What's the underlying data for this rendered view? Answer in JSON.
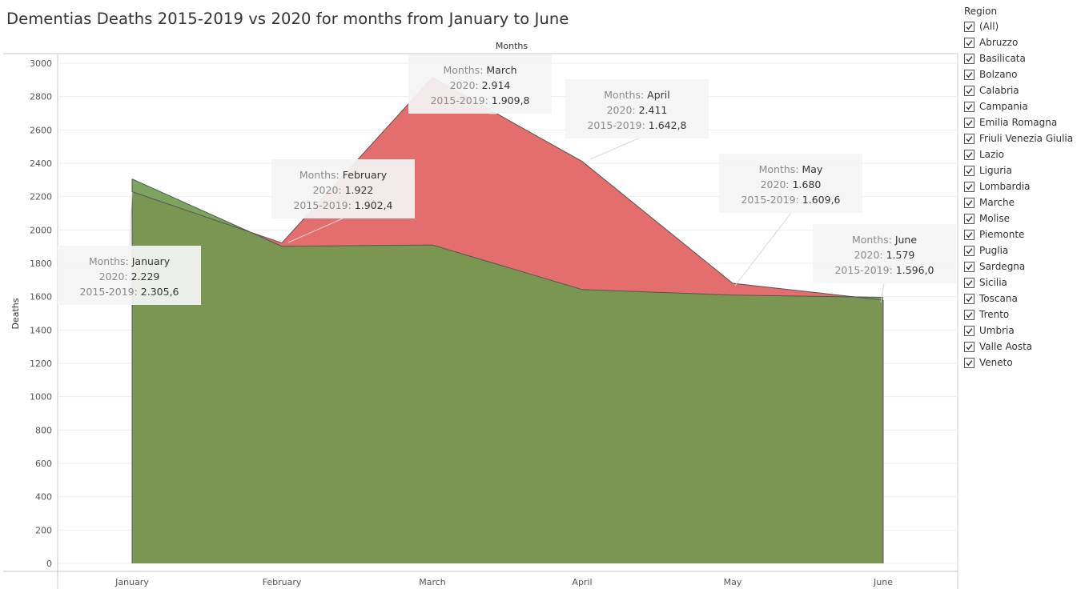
{
  "title": "Dementias Deaths 2015-2019 vs 2020 for months from January to June",
  "chart_data": {
    "type": "area",
    "title": "Dementias Deaths 2015-2019 vs 2020 for months from January to June",
    "column_header": "Months",
    "ylabel": "Deaths",
    "ylim": [
      0,
      3000
    ],
    "yticks": [
      0,
      200,
      400,
      600,
      800,
      1000,
      1200,
      1400,
      1600,
      1800,
      2000,
      2200,
      2400,
      2600,
      2800,
      3000
    ],
    "grid": true,
    "categories": [
      "January",
      "February",
      "March",
      "April",
      "May",
      "June"
    ],
    "series": [
      {
        "name": "2020",
        "values": [
          2229,
          1922,
          2914,
          2411,
          1680,
          1579
        ],
        "color": "#e46e6e"
      },
      {
        "name": "2015-2019",
        "values": [
          2305.6,
          1902.4,
          1909.8,
          1642.8,
          1609.6,
          1596.0
        ],
        "color": "#6e9a4f"
      }
    ],
    "annotations": [
      {
        "month": "January",
        "month_label": "Months: ",
        "v2020_label": "2020: ",
        "v2020": "2.229",
        "vavg_label": "2015-2019: ",
        "vavg": "2.305,6"
      },
      {
        "month": "February",
        "month_label": "Months: ",
        "v2020_label": "2020: ",
        "v2020": "1.922",
        "vavg_label": "2015-2019: ",
        "vavg": "1.902,4"
      },
      {
        "month": "March",
        "month_label": "Months: ",
        "v2020_label": "2020: ",
        "v2020": "2.914",
        "vavg_label": "2015-2019: ",
        "vavg": "1.909,8"
      },
      {
        "month": "April",
        "month_label": "Months: ",
        "v2020_label": "2020: ",
        "v2020": "2.411",
        "vavg_label": "2015-2019: ",
        "vavg": "1.642,8"
      },
      {
        "month": "May",
        "month_label": "Months: ",
        "v2020_label": "2020: ",
        "v2020": "1.680",
        "vavg_label": "2015-2019: ",
        "vavg": "1.609,6"
      },
      {
        "month": "June",
        "month_label": "Months: ",
        "v2020_label": "2020: ",
        "v2020": "1.579",
        "vavg_label": "2015-2019: ",
        "vavg": "1.596,0"
      }
    ]
  },
  "legend": {
    "title": "Region",
    "items": [
      {
        "label": "(All)",
        "checked": true
      },
      {
        "label": "Abruzzo",
        "checked": true
      },
      {
        "label": "Basilicata",
        "checked": true
      },
      {
        "label": "Bolzano",
        "checked": true
      },
      {
        "label": "Calabria",
        "checked": true
      },
      {
        "label": "Campania",
        "checked": true
      },
      {
        "label": "Emilia Romagna",
        "checked": true
      },
      {
        "label": "Friuli Venezia Giulia",
        "checked": true
      },
      {
        "label": "Lazio",
        "checked": true
      },
      {
        "label": "Liguria",
        "checked": true
      },
      {
        "label": "Lombardia",
        "checked": true
      },
      {
        "label": "Marche",
        "checked": true
      },
      {
        "label": "Molise",
        "checked": true
      },
      {
        "label": "Piemonte",
        "checked": true
      },
      {
        "label": "Puglia",
        "checked": true
      },
      {
        "label": "Sardegna",
        "checked": true
      },
      {
        "label": "Sicilia",
        "checked": true
      },
      {
        "label": "Toscana",
        "checked": true
      },
      {
        "label": "Trento",
        "checked": true
      },
      {
        "label": "Umbria",
        "checked": true
      },
      {
        "label": "Valle Aosta",
        "checked": true
      },
      {
        "label": "Veneto",
        "checked": true
      }
    ]
  }
}
